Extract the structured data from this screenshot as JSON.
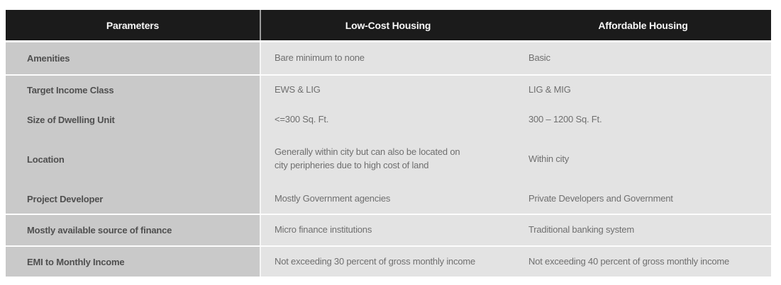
{
  "table": {
    "columns": [
      "Parameters",
      "Low-Cost Housing",
      "Affordable Housing"
    ],
    "rows": [
      {
        "parameter": "Amenities",
        "low_cost": "Bare minimum to none",
        "affordable": "Basic"
      },
      {
        "parameter": "Target Income Class",
        "low_cost": "EWS & LIG",
        "affordable": "LIG & MIG"
      },
      {
        "parameter": "Size of Dwelling Unit",
        "low_cost": "<=300 Sq. Ft.",
        "affordable": "300 – 1200 Sq. Ft."
      },
      {
        "parameter": "Location",
        "low_cost": "Generally within city but can also be located on\ncity peripheries due to high cost of land",
        "affordable": "Within city"
      },
      {
        "parameter": "Project Developer",
        "low_cost": "Mostly Government agencies",
        "affordable": "Private Developers and Government"
      },
      {
        "parameter": "Mostly available source of finance",
        "low_cost": "Micro finance institutions",
        "affordable": "Traditional banking system"
      },
      {
        "parameter": "EMI to Monthly Income",
        "low_cost": "Not exceeding 30 percent of gross monthly income",
        "affordable": "Not exceeding 40 percent of gross monthly income"
      }
    ],
    "colors": {
      "header_bg": "#1b1b1b",
      "header_text": "#f7f7f7",
      "parameter_column_bg": "#c9c9c9",
      "value_column_bg": "#e3e3e3",
      "parameter_text": "#4f4f4f",
      "value_text": "#6f6f6f"
    }
  }
}
